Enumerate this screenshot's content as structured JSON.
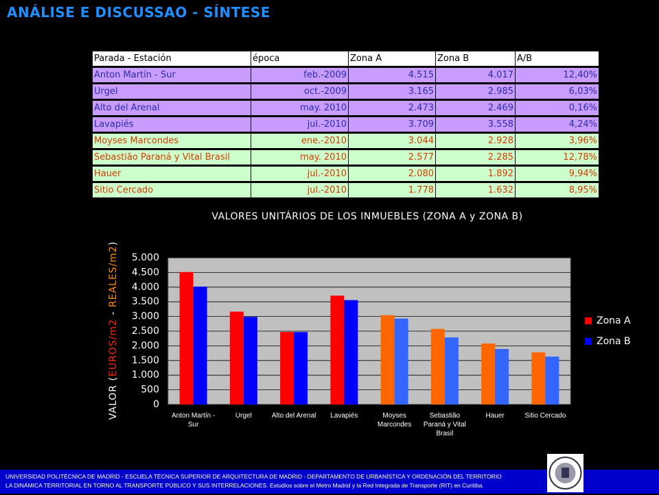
{
  "header": {
    "title": "ANÁLISE E DISCUSSAO - SÍNTESE"
  },
  "table": {
    "columns": [
      "Parada - Estación",
      "época",
      "Zona A",
      "Zona B",
      "A/B"
    ],
    "rows": [
      [
        "Anton Martín - Sur",
        "feb.-2009",
        "4.515",
        "4.017",
        "12,40%"
      ],
      [
        "Urgel",
        "oct.-2009",
        "3.165",
        "2.985",
        "6,03%"
      ],
      [
        "Alto del Arenal",
        "may. 2010",
        "2.473",
        "2.469",
        "0,16%"
      ],
      [
        "Lavapiés",
        "jul.-2010",
        "3.709",
        "3.558",
        "4,24%"
      ],
      [
        "Moyses Marcondes",
        "ene.-2010",
        "3.044",
        "2.928",
        "3,96%"
      ],
      [
        "Sebastião Paraná y Vital Brasil",
        "may. 2010",
        "2.577",
        "2.285",
        "12,78%"
      ],
      [
        "Hauer",
        "jul.-2010",
        "2.080",
        "1.892",
        "9,94%"
      ],
      [
        "Sitio Cercado",
        "jul.-2010",
        "1.778",
        "1.632",
        "8,95%"
      ]
    ]
  },
  "chart_data": {
    "type": "bar",
    "title": "VALORES UNITÁRIOS DE LOS INMUEBLES (ZONA A y ZONA B)",
    "y_label": [
      {
        "text": "VALOR (",
        "color": "#ffffff"
      },
      {
        "text": "EUROS/m2",
        "color": "#ff2a00"
      },
      {
        "text": " - ",
        "color": "#ffffff"
      },
      {
        "text": "REALES/m2",
        "color": "#ff8c00"
      },
      {
        "text": ")",
        "color": "#ffffff"
      }
    ],
    "categories": [
      "Anton Martín - Sur",
      "Urgel",
      "Alto del Arenal",
      "Lavapiés",
      "Moyses Marcondes",
      "Sebastião Paraná y Vital Brasil",
      "Hauer",
      "Sitio Cercado"
    ],
    "series": [
      {
        "name": "Zona A",
        "color": "#ff0000",
        "colors": [
          "#ff0000",
          "#ff0000",
          "#ff0000",
          "#ff0000",
          "#ff6600",
          "#ff6600",
          "#ff6600",
          "#ff6600"
        ],
        "values": [
          4515,
          3165,
          2473,
          3709,
          3044,
          2577,
          2080,
          1778
        ]
      },
      {
        "name": "Zona B",
        "color": "#0000ff",
        "colors": [
          "#0000ff",
          "#0000ff",
          "#0000ff",
          "#0000ff",
          "#3366ff",
          "#3366ff",
          "#3366ff",
          "#3366ff"
        ],
        "values": [
          4017,
          2985,
          2469,
          3558,
          2928,
          2285,
          1892,
          1632
        ]
      }
    ],
    "ylim": [
      0,
      5000
    ],
    "yticks": [
      0,
      500,
      {
        "value": 1000,
        "label": "1.000"
      },
      {
        "value": 1500,
        "label": "1.500"
      },
      {
        "value": 2000,
        "label": "2.000"
      },
      {
        "value": 2500,
        "label": "2.500"
      },
      {
        "value": 3000,
        "label": "3.000"
      },
      {
        "value": 3500,
        "label": "3.500"
      },
      {
        "value": 4000,
        "label": "4.000"
      },
      {
        "value": 4500,
        "label": "4.500"
      },
      {
        "value": 5000,
        "label": "5.000"
      }
    ],
    "grid": true,
    "legend": "right"
  },
  "footer": {
    "lines": [
      "UNIVERSIDAD POLITÉCNICA DE MADRID - ESCUELA TÉCNICA SUPERIOR DE ARQUITECTURA DE MADRID - DEPARTAMENTO DE URBANÍSTICA Y ORDENACIÓN DEL TERRITORIO",
      "LA DINÁMICA TERRITORIAL EN TORNO AL TRANSPORTE PÚBLICO Y SUS INTERRELACIONES. Estudios sobre el Metro Madrid y la Red Integrada de Transporte (RIT) en Curitiba."
    ]
  }
}
